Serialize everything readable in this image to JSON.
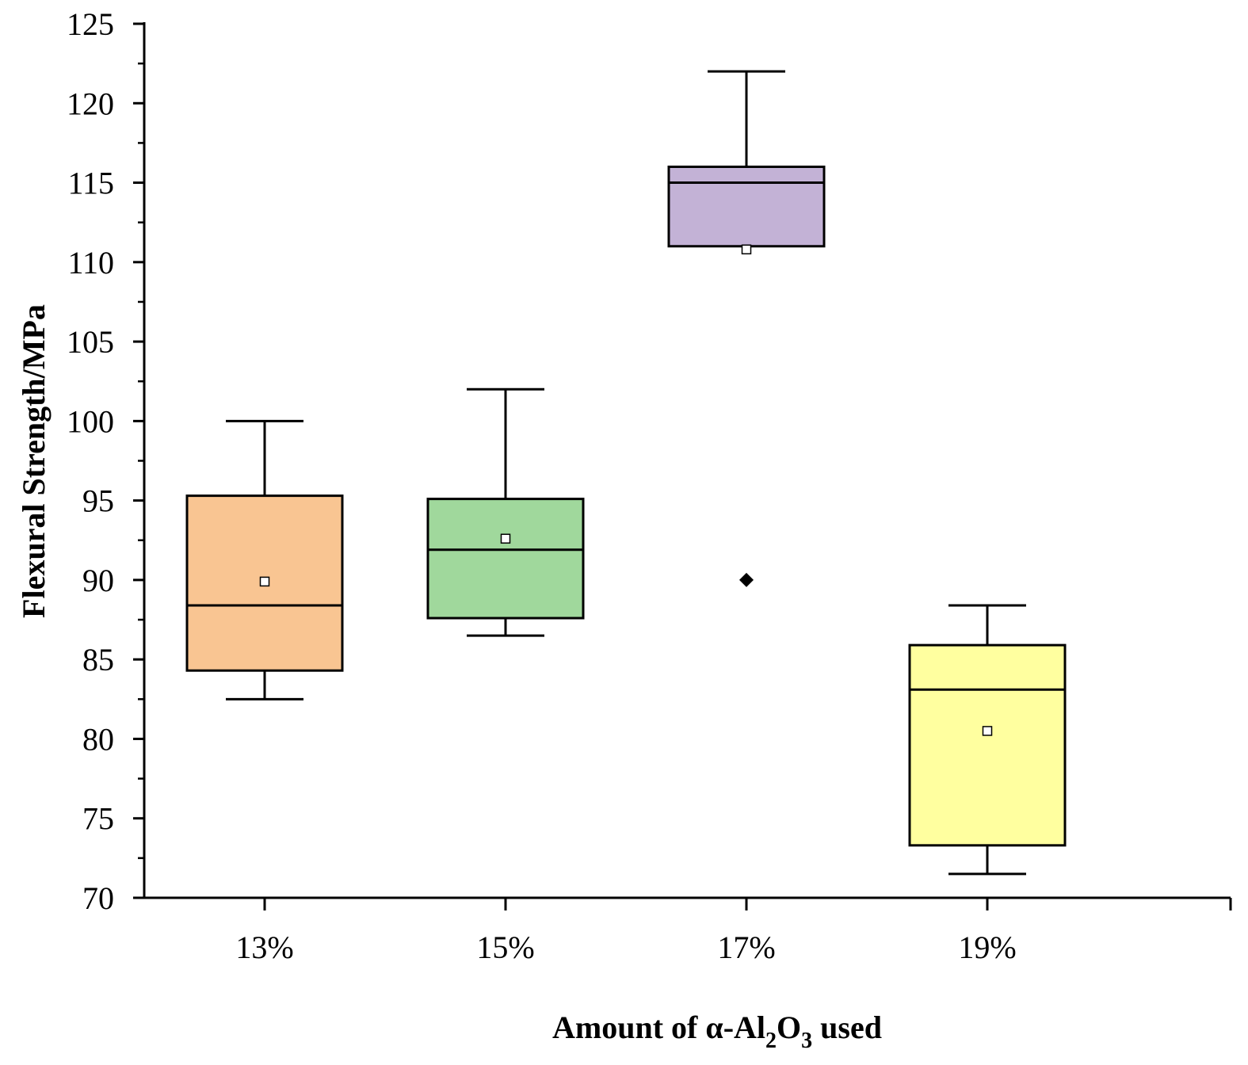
{
  "chart_data": {
    "type": "box",
    "xlabel_parts": [
      "Amount of α-Al",
      "2",
      "O",
      "3",
      " used"
    ],
    "ylabel": "Flexural Strength/MPa",
    "ylim": [
      70,
      125
    ],
    "y_major_ticks": [
      70,
      75,
      80,
      85,
      90,
      95,
      100,
      105,
      110,
      115,
      120,
      125
    ],
    "y_minor_step": 2.5,
    "categories": [
      "13%",
      "15%",
      "17%",
      "19%"
    ],
    "boxes": [
      {
        "category": "13%",
        "whisker_low": 82.5,
        "q1": 84.3,
        "median": 88.4,
        "q3": 95.3,
        "whisker_high": 100.0,
        "mean": 89.9,
        "color": "#f9c592"
      },
      {
        "category": "15%",
        "whisker_low": 86.5,
        "q1": 87.6,
        "median": 91.9,
        "q3": 95.1,
        "whisker_high": 102.0,
        "mean": 92.6,
        "color": "#a0d89c"
      },
      {
        "category": "17%",
        "whisker_low": 111.0,
        "q1": 111.0,
        "median": 115.0,
        "q3": 116.0,
        "whisker_high": 122.0,
        "mean": 110.8,
        "outliers": [
          90.0
        ],
        "color": "#c3b2d6"
      },
      {
        "category": "19%",
        "whisker_low": 71.5,
        "q1": 73.3,
        "median": 83.1,
        "q3": 85.9,
        "whisker_high": 88.4,
        "mean": 80.5,
        "color": "#ffff9f"
      }
    ]
  }
}
